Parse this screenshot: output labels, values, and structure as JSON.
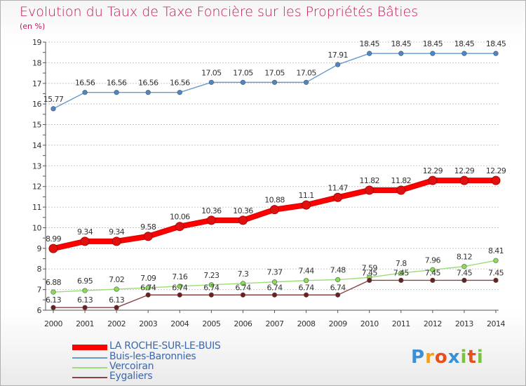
{
  "title": "Evolution du Taux de Taxe Foncière sur les Propriétés Bâties",
  "unit": "(en %)",
  "logo_text": "Proxiti",
  "colors": {
    "title": "#c2185b",
    "axis_text": "#333333",
    "grid": "#c8c8c8"
  },
  "chart_data": {
    "type": "line",
    "title": "Evolution du Taux de Taxe Foncière sur les Propriétés Bâties",
    "ylabel": "(en %)",
    "xlabel": "",
    "x": [
      "2000",
      "2001",
      "2002",
      "2003",
      "2004",
      "2005",
      "2006",
      "2007",
      "2008",
      "2009",
      "2010",
      "2011",
      "2012",
      "2013",
      "2014"
    ],
    "ylim": [
      6,
      19
    ],
    "yticks": [
      6,
      7,
      8,
      9,
      10,
      11,
      12,
      13,
      14,
      15,
      16,
      17,
      18,
      19
    ],
    "grid": "horizontal",
    "series": [
      {
        "name": "LA ROCHE-SUR-LE-BUIS",
        "color": "#ff0000",
        "marker": "#e01010",
        "values": [
          8.99,
          9.34,
          9.34,
          9.58,
          10.06,
          10.36,
          10.36,
          10.88,
          11.1,
          11.47,
          11.82,
          11.82,
          12.29,
          12.29,
          12.29
        ],
        "labels": [
          "8.99",
          "9.34",
          "9.34",
          "9.58",
          "10.06",
          "10.36",
          "10.36",
          "10.88",
          "11.1",
          "11.47",
          "11.82",
          "11.82",
          "12.29",
          "12.29",
          "12.29"
        ]
      },
      {
        "name": "Buis-les-Baronnies",
        "color": "#6699cc",
        "marker": "#4a86c8",
        "values": [
          15.77,
          16.56,
          16.56,
          16.56,
          16.56,
          17.05,
          17.05,
          17.05,
          17.05,
          17.91,
          18.45,
          18.45,
          18.45,
          18.45,
          18.45
        ],
        "labels": [
          "15.77",
          "16.56",
          "16.56",
          "16.56",
          "16.56",
          "17.05",
          "17.05",
          "17.05",
          "17.05",
          "17.91",
          "18.45",
          "18.45",
          "18.45",
          "18.45",
          "18.45"
        ]
      },
      {
        "name": "Vercoiran",
        "color": "#99dd77",
        "marker": "#88dd55",
        "values": [
          6.88,
          6.95,
          7.02,
          7.09,
          7.16,
          7.23,
          7.3,
          7.37,
          7.44,
          7.48,
          7.59,
          7.8,
          7.96,
          8.12,
          8.41
        ],
        "labels": [
          "6.88",
          "6.95",
          "7.02",
          "7.09",
          "7.16",
          "7.23",
          "7.3",
          "7.37",
          "7.44",
          "7.48",
          "7.59",
          "7.8",
          "7.96",
          "8.12",
          "8.41"
        ]
      },
      {
        "name": "Eygaliers",
        "color": "#884444",
        "marker": "#6b1f1f",
        "values": [
          6.13,
          6.13,
          6.13,
          6.74,
          6.74,
          6.74,
          6.74,
          6.74,
          6.74,
          6.74,
          7.45,
          7.45,
          7.45,
          7.45,
          7.45
        ],
        "labels": [
          "6.13",
          "6.13",
          "6.13",
          "6.74",
          "6.74",
          "6.74",
          "6.74",
          "6.74",
          "6.74",
          "6.74",
          "7.45",
          "7.45",
          "7.45",
          "7.45",
          "7.45"
        ]
      }
    ],
    "legend": "bottom-left"
  }
}
